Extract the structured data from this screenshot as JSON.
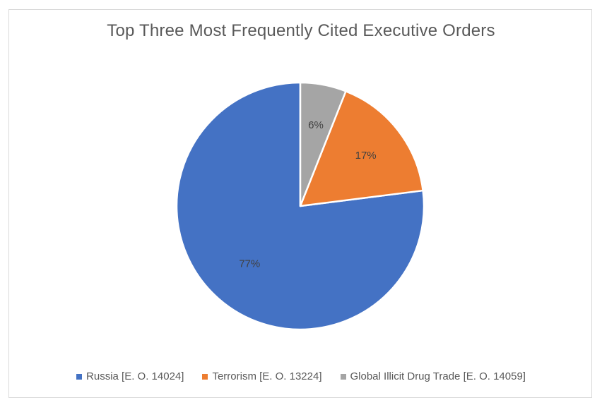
{
  "chart_data": {
    "type": "pie",
    "title": "Top Three Most Frequently Cited Executive Orders",
    "categories": [
      "Russia [E. O.  14024]",
      "Terrorism [E. O.  13224]",
      "Global Illicit Drug Trade [E. O.  14059]"
    ],
    "values": [
      77,
      17,
      6
    ],
    "data_labels": [
      "77%",
      "17%",
      "6%"
    ],
    "colors": [
      "#4472c4",
      "#ed7d31",
      "#a5a5a5"
    ],
    "legend_position": "bottom",
    "start_angle": "12 o'clock",
    "direction": "counter-clockwise"
  }
}
